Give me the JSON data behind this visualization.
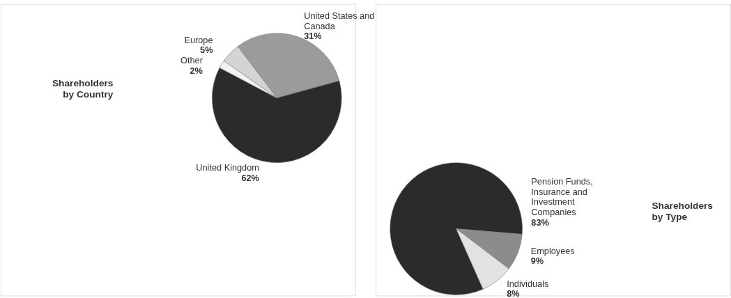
{
  "chart_data": [
    {
      "type": "pie",
      "title": "Shareholders by Country",
      "categories": [
        "Europe",
        "United States and Canada",
        "United Kingdom",
        "Other"
      ],
      "values": [
        5,
        31,
        62,
        2
      ],
      "colors": [
        "#d4d4d4",
        "#9b9b9b",
        "#2b2b2b",
        "#f2f2f2"
      ],
      "value_labels": [
        "5%",
        "31%",
        "62%",
        "2%"
      ]
    },
    {
      "type": "pie",
      "title": "Shareholders by Type",
      "categories": [
        "Pension Funds, Insurance and Investment Companies",
        "Employees",
        "Individuals"
      ],
      "values": [
        83,
        9,
        8
      ],
      "colors": [
        "#2b2b2b",
        "#8c8c8c",
        "#e2e2e2"
      ],
      "value_labels": [
        "83%",
        "9%",
        "8%"
      ]
    }
  ]
}
